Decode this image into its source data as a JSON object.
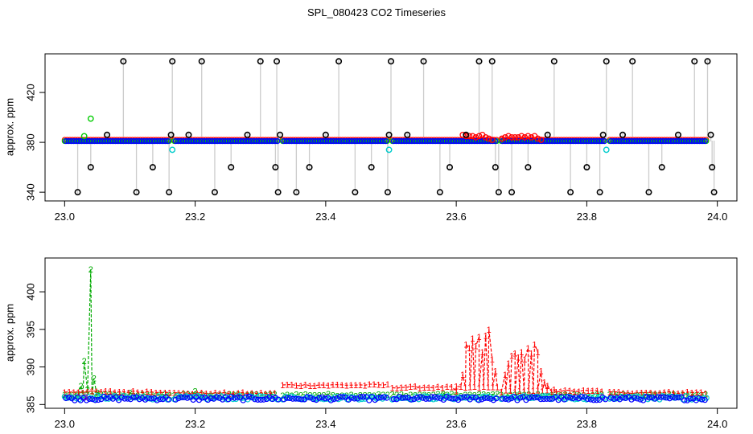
{
  "title": "SPL_080423  CO2 Timeseries",
  "colors": {
    "axis": "#000000",
    "series1": "#ff0000",
    "series2": "#00cc00",
    "series3": "#0000ff",
    "cyan": "#00cccc",
    "gray": "#bbbbbb"
  },
  "chart_data": [
    {
      "type": "scatter",
      "panel": "top",
      "title": "SPL_080423  CO2 Timeseries",
      "xlabel": "",
      "ylabel": "approx. ppm",
      "xlim": [
        22.97,
        24.03
      ],
      "ylim": [
        333,
        451
      ],
      "xticks": [
        23.0,
        23.2,
        23.4,
        23.6,
        23.8,
        24.0
      ],
      "xtick_labels": [
        "23.0",
        "23.2",
        "23.4",
        "23.6",
        "23.8",
        "24.0"
      ],
      "yticks": [
        340,
        380,
        420
      ],
      "ytick_labels": [
        "340",
        "380",
        "420"
      ],
      "baseline": 381,
      "gaps": [
        [
          23.162,
          23.168
        ],
        [
          23.328,
          23.334
        ],
        [
          23.496,
          23.502
        ],
        [
          23.663,
          23.669
        ],
        [
          23.829,
          23.835
        ]
      ],
      "black_spikes": [
        [
          23.02,
          340
        ],
        [
          23.04,
          360
        ],
        [
          23.065,
          386
        ],
        [
          23.09,
          445
        ],
        [
          23.11,
          340
        ],
        [
          23.135,
          360
        ],
        [
          23.16,
          340
        ],
        [
          23.163,
          386
        ],
        [
          23.165,
          445
        ],
        [
          23.19,
          386
        ],
        [
          23.21,
          445
        ],
        [
          23.23,
          340
        ],
        [
          23.255,
          360
        ],
        [
          23.28,
          386
        ],
        [
          23.3,
          445
        ],
        [
          23.323,
          360
        ],
        [
          23.325,
          445
        ],
        [
          23.327,
          340
        ],
        [
          23.33,
          386
        ],
        [
          23.355,
          340
        ],
        [
          23.375,
          360
        ],
        [
          23.4,
          386
        ],
        [
          23.42,
          445
        ],
        [
          23.445,
          340
        ],
        [
          23.47,
          360
        ],
        [
          23.495,
          340
        ],
        [
          23.497,
          386
        ],
        [
          23.5,
          445
        ],
        [
          23.525,
          386
        ],
        [
          23.55,
          445
        ],
        [
          23.575,
          340
        ],
        [
          23.59,
          360
        ],
        [
          23.615,
          386
        ],
        [
          23.635,
          445
        ],
        [
          23.655,
          445
        ],
        [
          23.66,
          360
        ],
        [
          23.665,
          340
        ],
        [
          23.685,
          340
        ],
        [
          23.71,
          360
        ],
        [
          23.74,
          386
        ],
        [
          23.75,
          445
        ],
        [
          23.775,
          340
        ],
        [
          23.8,
          360
        ],
        [
          23.82,
          340
        ],
        [
          23.825,
          386
        ],
        [
          23.83,
          445
        ],
        [
          23.855,
          386
        ],
        [
          23.87,
          445
        ],
        [
          23.895,
          340
        ],
        [
          23.915,
          360
        ],
        [
          23.94,
          386
        ],
        [
          23.965,
          445
        ],
        [
          23.985,
          445
        ],
        [
          23.99,
          386
        ],
        [
          23.992,
          360
        ],
        [
          23.995,
          340
        ]
      ],
      "green_points": [
        [
          23.03,
          385
        ],
        [
          23.04,
          399
        ]
      ],
      "cyan_points": [
        [
          23.165,
          374
        ],
        [
          23.497,
          374
        ],
        [
          23.83,
          374
        ]
      ],
      "red_bump_points": [
        [
          23.61,
          386
        ],
        [
          23.615,
          385
        ],
        [
          23.62,
          385
        ],
        [
          23.625,
          385
        ],
        [
          23.63,
          384
        ],
        [
          23.635,
          385
        ],
        [
          23.64,
          386
        ],
        [
          23.645,
          384
        ],
        [
          23.65,
          383
        ],
        [
          23.655,
          382
        ],
        [
          23.67,
          383
        ],
        [
          23.675,
          384
        ],
        [
          23.68,
          385
        ],
        [
          23.685,
          384
        ],
        [
          23.69,
          384
        ],
        [
          23.695,
          384
        ],
        [
          23.7,
          385
        ],
        [
          23.705,
          384
        ],
        [
          23.71,
          385
        ],
        [
          23.715,
          384
        ],
        [
          23.72,
          385
        ],
        [
          23.725,
          383
        ],
        [
          23.73,
          382
        ]
      ]
    },
    {
      "type": "line",
      "panel": "bottom",
      "xlabel": "",
      "ylabel": "approx. ppm",
      "xlim": [
        22.97,
        24.03
      ],
      "ylim": [
        384.5,
        404.5
      ],
      "xticks": [
        23.0,
        23.2,
        23.4,
        23.6,
        23.8,
        24.0
      ],
      "xtick_labels": [
        "23.0",
        "23.2",
        "23.4",
        "23.6",
        "23.8",
        "24.0"
      ],
      "yticks": [
        385,
        390,
        395,
        400
      ],
      "ytick_labels": [
        "385",
        "390",
        "395",
        "400"
      ],
      "gaps": [
        [
          23.162,
          23.168
        ],
        [
          23.328,
          23.334
        ],
        [
          23.496,
          23.502
        ],
        [
          23.663,
          23.669
        ],
        [
          23.829,
          23.835
        ]
      ],
      "series": [
        {
          "name": "1",
          "color": "#ff0000",
          "marker": "1",
          "base": 386.6,
          "segment_levels": [
            386.7,
            386.5,
            387.6,
            387.3,
            386.8,
            386.6
          ],
          "extra": [
            [
              23.6,
              386.8
            ],
            [
              23.61,
              389.0
            ],
            [
              23.615,
              393.0
            ],
            [
              23.62,
              392.5
            ],
            [
              23.625,
              393.8
            ],
            [
              23.63,
              392.8
            ],
            [
              23.635,
              394.0
            ],
            [
              23.64,
              392.0
            ],
            [
              23.645,
              394.2
            ],
            [
              23.65,
              395.0
            ],
            [
              23.655,
              391.0
            ],
            [
              23.66,
              389.5
            ],
            [
              23.675,
              389.0
            ],
            [
              23.68,
              390.5
            ],
            [
              23.685,
              391.5
            ],
            [
              23.69,
              391.8
            ],
            [
              23.695,
              391.3
            ],
            [
              23.7,
              392.0
            ],
            [
              23.705,
              391.0
            ],
            [
              23.71,
              392.5
            ],
            [
              23.715,
              391.8
            ],
            [
              23.72,
              393.0
            ],
            [
              23.725,
              392.0
            ],
            [
              23.73,
              389.5
            ],
            [
              23.735,
              388.0
            ],
            [
              23.74,
              387.5
            ],
            [
              23.75,
              387.0
            ]
          ]
        },
        {
          "name": "2",
          "color": "#00aa00",
          "marker": "2",
          "base": 386.3,
          "extra": [
            [
              23.02,
              386.2
            ],
            [
              23.025,
              387.5
            ],
            [
              23.03,
              390.8
            ],
            [
              23.035,
              387.0
            ],
            [
              23.04,
              403.0
            ],
            [
              23.045,
              388.5
            ],
            [
              23.05,
              386.6
            ],
            [
              23.1,
              386.6
            ],
            [
              23.2,
              386.8
            ],
            [
              23.58,
              386.4
            ]
          ]
        },
        {
          "name": "3",
          "color": "#0000ff",
          "marker": "circle",
          "base": 385.8
        },
        {
          "name": "cyan",
          "color": "#00cccc",
          "marker": "circle",
          "base": 385.9
        }
      ]
    }
  ]
}
